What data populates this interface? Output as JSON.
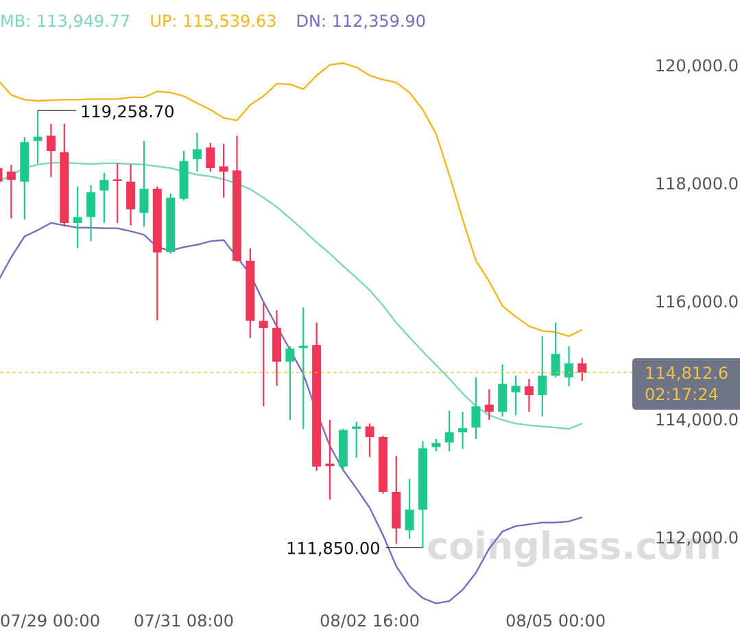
{
  "chart_data": {
    "type": "candlestick",
    "categories": [
      "07/29 00:00",
      null,
      null,
      null,
      null,
      null,
      null,
      null,
      null,
      null,
      null,
      null,
      null,
      null,
      "07/31 08:00",
      null,
      null,
      null,
      null,
      null,
      null,
      null,
      null,
      null,
      null,
      null,
      null,
      null,
      "08/02 16:00",
      null,
      null,
      null,
      null,
      null,
      null,
      null,
      null,
      null,
      null,
      null,
      null,
      null,
      "08/05 00:00",
      null,
      null
    ],
    "open": [
      118280,
      118220,
      118050,
      118740,
      118830,
      118550,
      117350,
      117450,
      117900,
      118090,
      118050,
      117520,
      117930,
      116860,
      117760,
      118430,
      118630,
      118310,
      118240,
      116710,
      115690,
      115570,
      115000,
      115230,
      115280,
      113270,
      113220,
      113860,
      113900,
      113720,
      112790,
      112140,
      112490,
      113550,
      113630,
      113800,
      113880,
      114270,
      114150,
      114480,
      114580,
      114430,
      114760,
      114730,
      114970
    ],
    "high": [
      118360,
      118340,
      118800,
      119258.7,
      119030,
      119030,
      117970,
      117990,
      118200,
      118360,
      118340,
      118740,
      117970,
      117850,
      118570,
      118880,
      118710,
      118690,
      118830,
      116920,
      116010,
      115870,
      115260,
      115920,
      115660,
      114010,
      113860,
      113980,
      113950,
      113740,
      113400,
      113010,
      113650,
      113690,
      114170,
      114150,
      114730,
      114530,
      114950,
      114760,
      114710,
      115430,
      115660,
      115260,
      115060
    ],
    "low": [
      117380,
      117430,
      117410,
      118360,
      118130,
      117290,
      116920,
      117040,
      117350,
      117350,
      117310,
      117290,
      115700,
      116830,
      117730,
      118220,
      118220,
      117780,
      116690,
      115400,
      114240,
      114590,
      114010,
      113860,
      113150,
      112660,
      113140,
      113370,
      113380,
      112760,
      111910,
      112000,
      111850,
      113480,
      113480,
      113520,
      113690,
      114010,
      114070,
      114090,
      114150,
      114070,
      114730,
      114580,
      114670
    ],
    "close": [
      118050,
      118080,
      118720,
      118810,
      118570,
      117350,
      117450,
      117870,
      118080,
      118070,
      117580,
      117930,
      116850,
      117780,
      118400,
      118600,
      118280,
      118220,
      116710,
      115690,
      115570,
      115000,
      115220,
      115270,
      113220,
      113230,
      113840,
      113900,
      113720,
      112790,
      112170,
      112490,
      113530,
      113620,
      113800,
      113870,
      114240,
      114150,
      114620,
      114590,
      114430,
      114760,
      115130,
      114970,
      114812.6
    ],
    "up_color": "#1ec98b",
    "down_color": "#ef3558",
    "series": [
      {
        "name": "MB: 113,949.77",
        "color": "#7fd4bf",
        "values": [
          118050,
          118160,
          118280,
          118340,
          118370,
          118370,
          118360,
          118350,
          118360,
          118360,
          118350,
          118340,
          118310,
          118280,
          118220,
          118170,
          118140,
          118090,
          118020,
          117920,
          117780,
          117620,
          117430,
          117230,
          117020,
          116830,
          116620,
          116420,
          116210,
          115950,
          115660,
          115410,
          115170,
          114940,
          114710,
          114460,
          114240,
          114090,
          114010,
          113950,
          113920,
          113900,
          113880,
          113860,
          113949.77
        ]
      },
      {
        "name": "UP: 115,539.63",
        "color": "#f0b820",
        "values": [
          119770,
          119520,
          119440,
          119420,
          119430,
          119440,
          119440,
          119450,
          119450,
          119450,
          119480,
          119480,
          119580,
          119560,
          119500,
          119380,
          119270,
          119130,
          119090,
          119350,
          119500,
          119710,
          119700,
          119620,
          119850,
          120030,
          120060,
          119990,
          119850,
          119780,
          119730,
          119560,
          119270,
          118860,
          118160,
          117410,
          116710,
          116360,
          115940,
          115760,
          115600,
          115520,
          115500,
          115430,
          115539.63
        ]
      },
      {
        "name": "DN: 112,359.90",
        "color": "#7b6bbf",
        "values": [
          116360,
          116770,
          117120,
          117230,
          117350,
          117310,
          117270,
          117270,
          117260,
          117260,
          117210,
          117150,
          116940,
          116880,
          116940,
          116980,
          117040,
          117060,
          116770,
          116480,
          116010,
          115600,
          115200,
          114790,
          114150,
          113570,
          113160,
          112850,
          112520,
          112060,
          111530,
          111190,
          110990,
          110900,
          110940,
          111130,
          111420,
          111830,
          112120,
          112210,
          112240,
          112270,
          112270,
          112290,
          112359.9
        ]
      }
    ],
    "ylim": [
      110800,
      121130
    ],
    "yticks": [
      {
        "value": 112000,
        "label": "112,000.0"
      },
      {
        "value": 114000,
        "label": "114,000.0"
      },
      {
        "value": 116000,
        "label": "116,000.0"
      },
      {
        "value": 118000,
        "label": "118,000.0"
      },
      {
        "value": 120000,
        "label": "120,000.0"
      }
    ],
    "annotations": [
      {
        "value": 119258.7,
        "label": "119,258.70"
      },
      {
        "value": 111850,
        "label": "111,850.00"
      }
    ],
    "last_price": {
      "value": 114812.6,
      "label": "114,812.6",
      "countdown": "02:17:24"
    },
    "watermark": "coinglass.com"
  }
}
